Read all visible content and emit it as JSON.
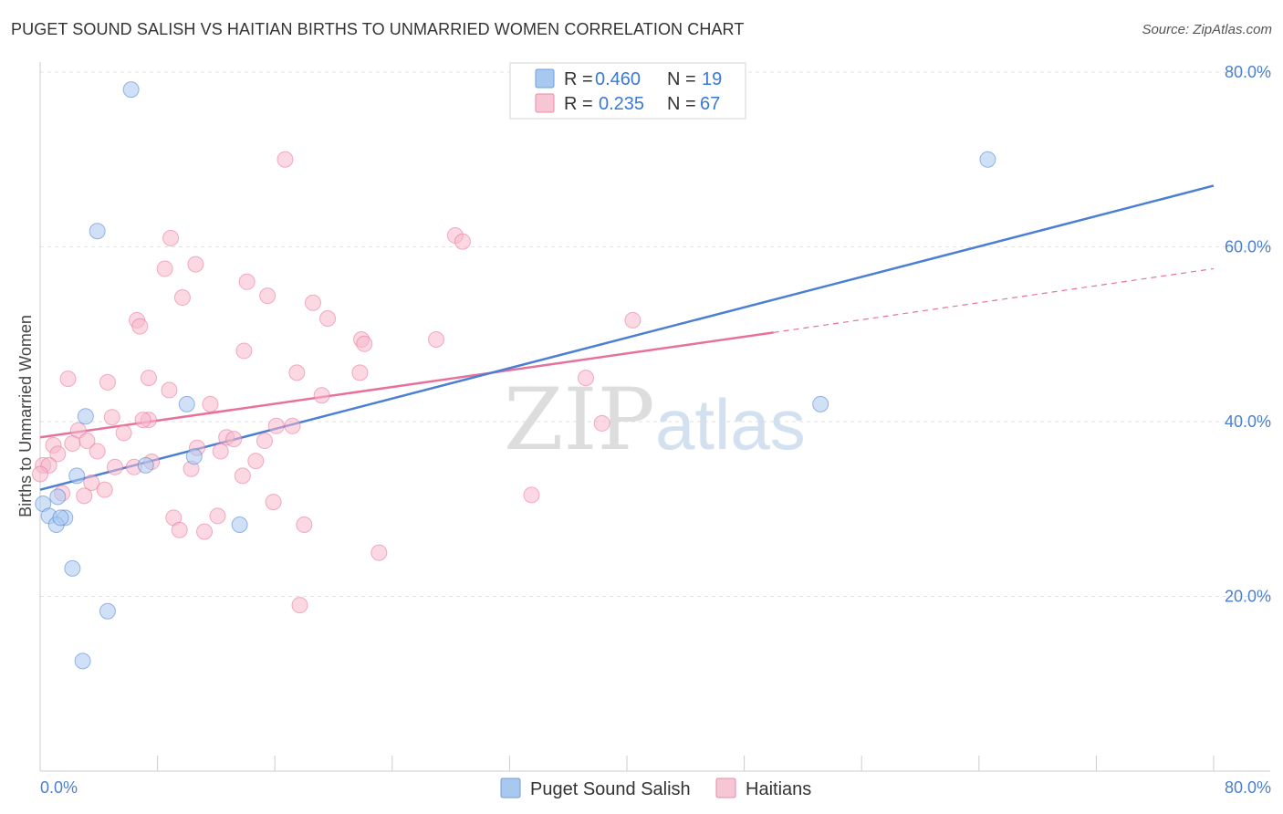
{
  "title": "PUGET SOUND SALISH VS HAITIAN BIRTHS TO UNMARRIED WOMEN CORRELATION CHART",
  "source": "Source: ZipAtlas.com",
  "watermark": {
    "zip": "ZIP",
    "atlas": "atlas"
  },
  "legend": {
    "r_label": "R =",
    "n_label": "N =",
    "rows": [
      {
        "r": "0.460",
        "n": "19",
        "color": "#a9c8f0"
      },
      {
        "r": "0.235",
        "n": "67",
        "color": "#f7b8cb"
      }
    ]
  },
  "chart_data": {
    "type": "scatter",
    "title": "PUGET SOUND SALISH VS HAITIAN BIRTHS TO UNMARRIED WOMEN CORRELATION CHART",
    "xlabel": "",
    "ylabel": "Births to Unmarried Women",
    "xlim": [
      0,
      80
    ],
    "ylim": [
      0,
      80
    ],
    "x_ticks": [
      "0.0%",
      "80.0%"
    ],
    "y_ticks": [
      "20.0%",
      "40.0%",
      "60.0%",
      "80.0%"
    ],
    "y_tick_values": [
      20,
      40,
      60,
      80
    ],
    "grid": true,
    "legend_position": "top-center",
    "series": [
      {
        "name": "Puget Sound Salish",
        "color": "#4a7fd4",
        "fill": "#a9c8f0",
        "points": [
          [
            6.2,
            78.0
          ],
          [
            3.9,
            61.8
          ],
          [
            64.6,
            70.0
          ],
          [
            53.2,
            42.0
          ],
          [
            10.0,
            42.0
          ],
          [
            3.1,
            40.6
          ],
          [
            10.5,
            36.0
          ],
          [
            7.2,
            35.0
          ],
          [
            2.5,
            33.8
          ],
          [
            1.2,
            31.4
          ],
          [
            0.2,
            30.6
          ],
          [
            0.6,
            29.2
          ],
          [
            1.7,
            29.0
          ],
          [
            1.1,
            28.2
          ],
          [
            13.6,
            28.2
          ],
          [
            2.2,
            23.2
          ],
          [
            4.6,
            18.3
          ],
          [
            2.9,
            12.6
          ],
          [
            1.4,
            29.0
          ]
        ],
        "trend": {
          "x0": 0,
          "y0": 32.2,
          "x1": 80,
          "y1": 67.0
        }
      },
      {
        "name": "Haitians",
        "color": "#e8719a",
        "fill": "#f7b8cb",
        "points": [
          [
            16.7,
            70.0
          ],
          [
            28.3,
            61.3
          ],
          [
            28.8,
            60.6
          ],
          [
            8.9,
            61.0
          ],
          [
            8.5,
            57.5
          ],
          [
            10.6,
            58.0
          ],
          [
            14.1,
            56.0
          ],
          [
            15.5,
            54.4
          ],
          [
            9.7,
            54.2
          ],
          [
            18.6,
            53.6
          ],
          [
            6.6,
            51.6
          ],
          [
            19.6,
            51.8
          ],
          [
            6.8,
            50.9
          ],
          [
            40.4,
            51.6
          ],
          [
            21.9,
            49.4
          ],
          [
            27.0,
            49.4
          ],
          [
            22.1,
            48.9
          ],
          [
            13.9,
            48.1
          ],
          [
            17.5,
            45.6
          ],
          [
            21.8,
            45.6
          ],
          [
            1.9,
            44.9
          ],
          [
            7.4,
            45.0
          ],
          [
            4.6,
            44.5
          ],
          [
            37.2,
            45.0
          ],
          [
            8.8,
            43.6
          ],
          [
            19.2,
            43.0
          ],
          [
            11.6,
            42.0
          ],
          [
            4.9,
            40.5
          ],
          [
            7.4,
            40.2
          ],
          [
            16.1,
            39.5
          ],
          [
            17.2,
            39.5
          ],
          [
            38.3,
            39.8
          ],
          [
            2.6,
            39.0
          ],
          [
            5.7,
            38.7
          ],
          [
            12.7,
            38.2
          ],
          [
            13.2,
            38.0
          ],
          [
            3.2,
            37.8
          ],
          [
            15.3,
            37.8
          ],
          [
            2.2,
            37.5
          ],
          [
            0.9,
            37.3
          ],
          [
            10.7,
            37.0
          ],
          [
            3.9,
            36.6
          ],
          [
            1.2,
            36.3
          ],
          [
            12.3,
            36.6
          ],
          [
            14.7,
            35.5
          ],
          [
            7.6,
            35.4
          ],
          [
            5.1,
            34.8
          ],
          [
            6.4,
            34.8
          ],
          [
            10.3,
            34.6
          ],
          [
            0.2,
            35.0
          ],
          [
            0.6,
            35.0
          ],
          [
            13.8,
            33.8
          ],
          [
            3.5,
            33.0
          ],
          [
            4.4,
            32.2
          ],
          [
            1.5,
            31.8
          ],
          [
            3.0,
            31.5
          ],
          [
            33.5,
            31.6
          ],
          [
            15.9,
            30.8
          ],
          [
            9.1,
            29.0
          ],
          [
            12.1,
            29.2
          ],
          [
            18.0,
            28.2
          ],
          [
            9.5,
            27.6
          ],
          [
            11.2,
            27.4
          ],
          [
            23.1,
            25.0
          ],
          [
            17.7,
            19.0
          ],
          [
            0.0,
            34.0
          ],
          [
            7.0,
            40.2
          ]
        ],
        "trend": {
          "x0": 0,
          "y0": 38.2,
          "x1": 50,
          "y1": 50.2
        },
        "trend_dashed_to": {
          "x1": 80,
          "y1": 57.5
        }
      }
    ]
  }
}
